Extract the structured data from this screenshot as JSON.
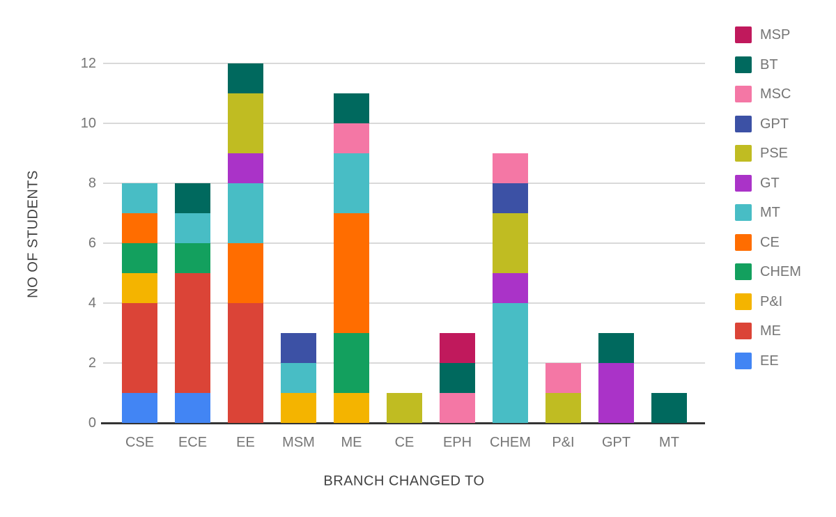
{
  "chart_data": {
    "type": "bar",
    "stacked": true,
    "xlabel": "BRANCH CHANGED TO",
    "ylabel": "NO OF STUDENTS",
    "categories": [
      "CSE",
      "ECE",
      "EE",
      "MSM",
      "ME",
      "CE",
      "EPH",
      "CHEM",
      "P&I",
      "GPT",
      "MT"
    ],
    "series": [
      {
        "name": "EE",
        "color": "#4285f4",
        "values": [
          1,
          1,
          0,
          0,
          0,
          0,
          0,
          0,
          0,
          0,
          0
        ]
      },
      {
        "name": "ME",
        "color": "#db4437",
        "values": [
          3,
          4,
          4,
          0,
          0,
          0,
          0,
          0,
          0,
          0,
          0
        ]
      },
      {
        "name": "P&I",
        "color": "#f4b400",
        "values": [
          1,
          0,
          0,
          1,
          1,
          0,
          0,
          0,
          0,
          0,
          0
        ]
      },
      {
        "name": "CHEM",
        "color": "#13a05e",
        "values": [
          1,
          1,
          0,
          0,
          2,
          0,
          0,
          0,
          0,
          0,
          0
        ]
      },
      {
        "name": "CE",
        "color": "#ff6d00",
        "values": [
          1,
          0,
          2,
          0,
          4,
          0,
          0,
          0,
          0,
          0,
          0
        ]
      },
      {
        "name": "MT",
        "color": "#48bdc5",
        "values": [
          1,
          1,
          2,
          1,
          2,
          0,
          0,
          4,
          0,
          0,
          0
        ]
      },
      {
        "name": "GT",
        "color": "#aa33c8",
        "values": [
          0,
          0,
          1,
          0,
          0,
          0,
          0,
          1,
          0,
          2,
          0
        ]
      },
      {
        "name": "PSE",
        "color": "#c0bc22",
        "values": [
          0,
          0,
          2,
          0,
          0,
          1,
          0,
          2,
          1,
          0,
          0
        ]
      },
      {
        "name": "GPT",
        "color": "#3c51a5",
        "values": [
          0,
          0,
          0,
          1,
          0,
          0,
          0,
          1,
          0,
          0,
          0
        ]
      },
      {
        "name": "MSC",
        "color": "#f477a5",
        "values": [
          0,
          0,
          0,
          0,
          1,
          0,
          1,
          1,
          1,
          0,
          0
        ]
      },
      {
        "name": "BT",
        "color": "#00695e",
        "values": [
          0,
          1,
          1,
          0,
          1,
          0,
          1,
          0,
          0,
          1,
          1
        ]
      },
      {
        "name": "MSP",
        "color": "#c0195c",
        "values": [
          0,
          0,
          0,
          0,
          0,
          0,
          1,
          0,
          0,
          0,
          0
        ]
      }
    ],
    "totals": {
      "CSE": 8,
      "ECE": 8,
      "EE": 12,
      "MSM": 3,
      "ME": 11,
      "CE": 1,
      "EPH": 3,
      "CHEM": 9,
      "P&I": 2,
      "GPT": 3,
      "MT": 1
    },
    "ylim": [
      0,
      12
    ],
    "yticks": [
      0,
      2,
      4,
      6,
      8,
      10,
      12
    ],
    "grid": true,
    "legend_position": "right",
    "legend_order_top_to_bottom": [
      "MSP",
      "BT",
      "MSC",
      "GPT",
      "PSE",
      "GT",
      "MT",
      "CE",
      "CHEM",
      "P&I",
      "ME",
      "EE"
    ]
  },
  "colors": {
    "background": "#ffffff",
    "gridline": "#d9d9d9",
    "baseline": "#333333",
    "tick_label": "#757575",
    "category_label": "#757575",
    "axis_title": "#424242",
    "legend_label": "#757575"
  }
}
